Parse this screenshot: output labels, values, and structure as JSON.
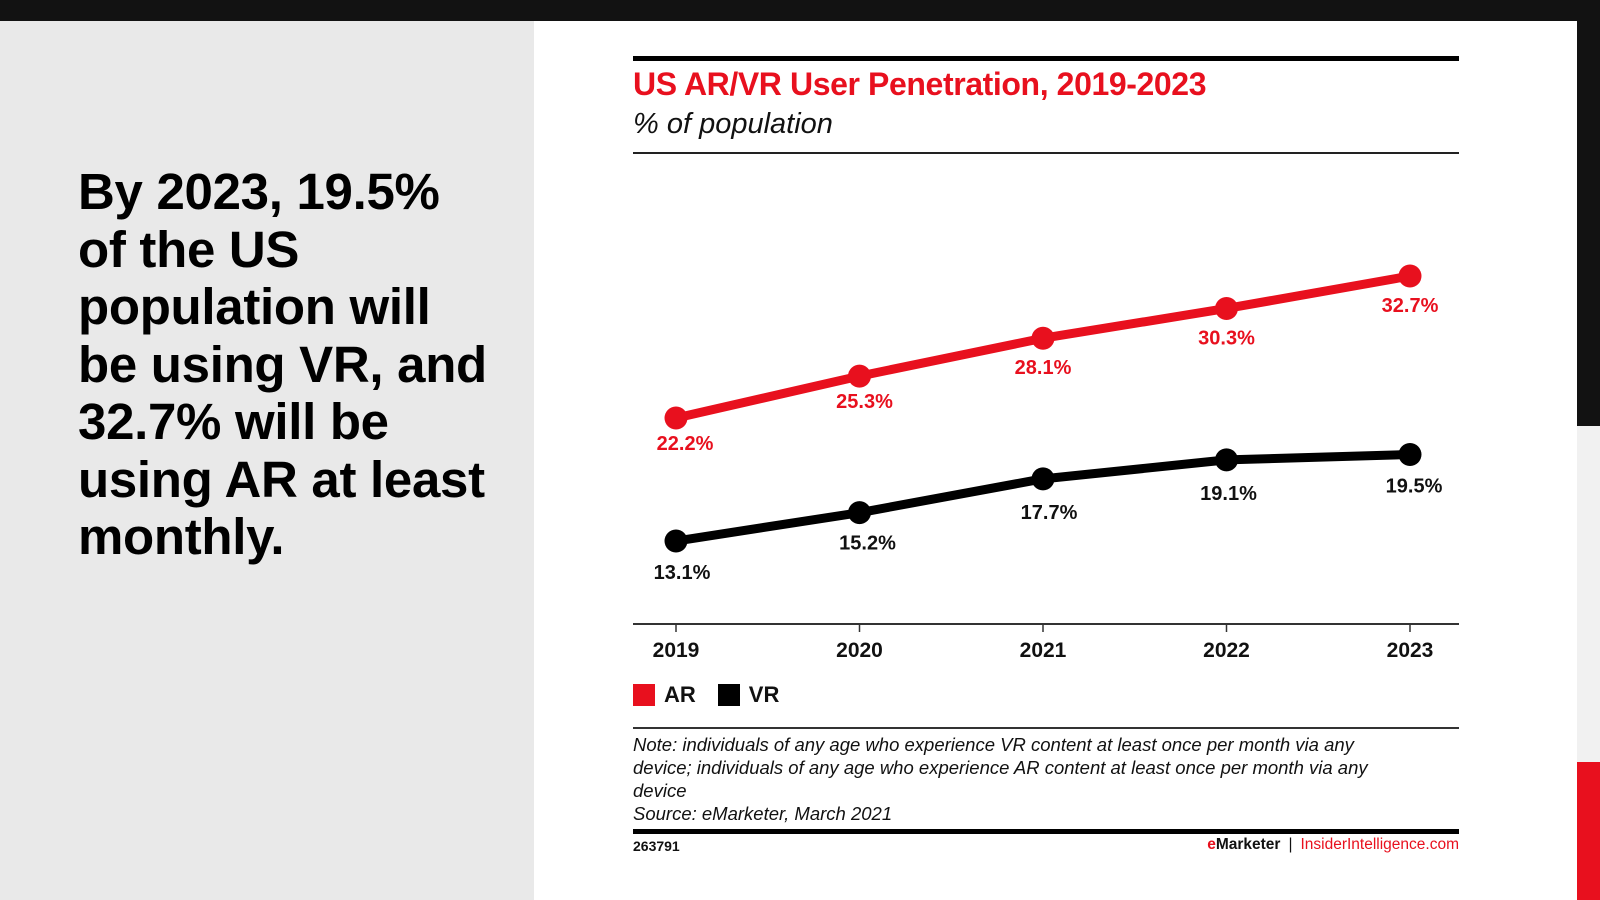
{
  "slide": {
    "headline": "By 2023, 19.5% of the US population will be using VR, and 32.7% will be using AR at least monthly.",
    "colors": {
      "accent_red": "#e8101e",
      "dark": "#121212",
      "panel_gray": "#e9e9e9"
    }
  },
  "chart_data": {
    "type": "line",
    "title": "US AR/VR User Penetration, 2019-2023",
    "subtitle": "% of population",
    "xlabel": "",
    "ylabel": "% of population",
    "x": [
      "2019",
      "2020",
      "2021",
      "2022",
      "2023"
    ],
    "series": [
      {
        "name": "AR",
        "color": "#e8101e",
        "values": [
          22.2,
          25.3,
          28.1,
          30.3,
          32.7
        ],
        "labels": [
          "22.2%",
          "25.3%",
          "28.1%",
          "30.3%",
          "32.7%"
        ],
        "label_position": "below"
      },
      {
        "name": "VR",
        "color": "#000000",
        "values": [
          13.1,
          15.2,
          17.7,
          19.1,
          19.5
        ],
        "labels": [
          "13.1%",
          "15.2%",
          "17.7%",
          "19.1%",
          "19.5%"
        ],
        "label_position": "below"
      }
    ],
    "grid": false,
    "legend": {
      "placement": "bottom-left",
      "entries": [
        "AR",
        "VR"
      ]
    },
    "y_axis_visible": false
  },
  "footer": {
    "note_lines": [
      "Note: individuals of any age who experience VR content at least once per month via any",
      "device; individuals of any age who experience AR content at least once per month via any",
      "device",
      "Source: eMarketer, March 2021"
    ],
    "chart_id": "263791",
    "brand_e": "e",
    "brand_rest": "Marketer",
    "separator": "|",
    "site": "InsiderIntelligence.com"
  }
}
